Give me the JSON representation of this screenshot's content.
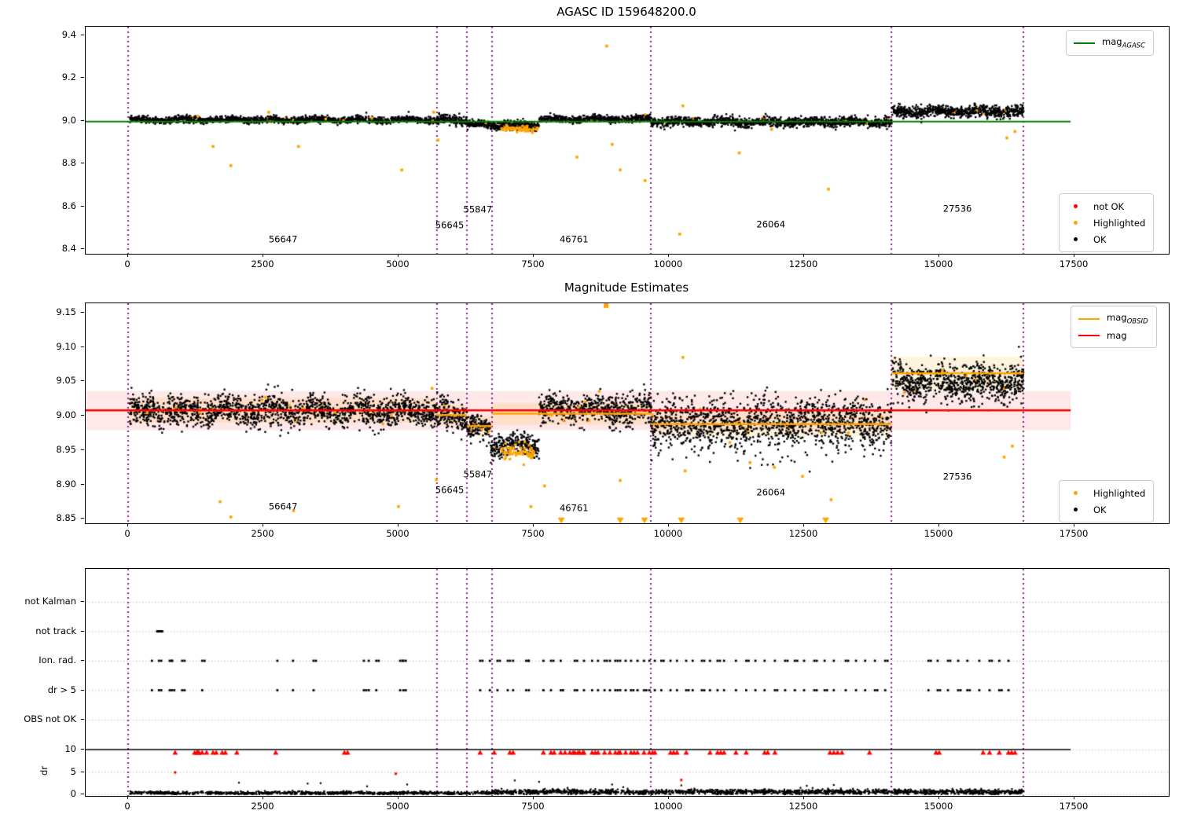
{
  "figure": {
    "bg": "#ffffff"
  },
  "panel1": {
    "title": "AGASC ID 159648200.0",
    "legend_line": {
      "main": "mag",
      "sub": "AGASC",
      "color": "#008000"
    },
    "legend_points": [
      {
        "label": "not OK",
        "color": "#ff0000"
      },
      {
        "label": "Highlighted",
        "color": "#ffa500"
      },
      {
        "label": "OK",
        "color": "#000000"
      }
    ]
  },
  "panel2": {
    "title": "Magnitude Estimates",
    "legend_lines": [
      {
        "main": "mag",
        "sub": "OBSID",
        "color": "#ffa500"
      },
      {
        "main": "mag",
        "sub": "",
        "color": "#ff0000"
      }
    ],
    "legend_points": [
      {
        "label": "Highlighted",
        "color": "#ffa500"
      },
      {
        "label": "OK",
        "color": "#000000"
      }
    ]
  },
  "panel3": {
    "ylabel": "dr"
  },
  "chart_data": [
    {
      "type": "scatter",
      "title": "AGASC ID 159648200.0",
      "xlim": [
        -785,
        19244
      ],
      "ylim": [
        8.3776,
        9.4404
      ],
      "xticks": [
        0,
        2500,
        5000,
        7500,
        10000,
        12500,
        15000,
        17500
      ],
      "yticks": [
        8.4,
        8.6,
        8.8,
        9.0,
        9.2,
        9.4
      ],
      "hline": {
        "y": 8.996,
        "color": "#008000",
        "x0": -785,
        "x1": 17430
      },
      "vlines": {
        "x": [
          0,
          5710,
          6265,
          6730,
          9665,
          14115,
          16555
        ],
        "color": "#800080"
      },
      "annotations": [
        {
          "text": "56647",
          "x": 2880,
          "y": 8.44
        },
        {
          "text": "56645",
          "x": 5960,
          "y": 8.505
        },
        {
          "text": "55847",
          "x": 6480,
          "y": 8.58
        },
        {
          "text": "46761",
          "x": 8260,
          "y": 8.44
        },
        {
          "text": "26064",
          "x": 11900,
          "y": 8.51
        },
        {
          "text": "27536",
          "x": 15350,
          "y": 8.585
        }
      ],
      "segments": [
        [
          30,
          5700,
          9.005,
          0.009,
          1500
        ],
        [
          5700,
          6270,
          9.005,
          0.012,
          170
        ],
        [
          6270,
          6700,
          8.982,
          0.01,
          130
        ],
        [
          6700,
          7600,
          8.978,
          0.012,
          260
        ],
        [
          7600,
          9670,
          9.008,
          0.009,
          550
        ],
        [
          9670,
          14120,
          8.995,
          0.013,
          1300
        ],
        [
          14120,
          16560,
          9.045,
          0.016,
          750
        ]
      ],
      "highlight_cloud": [
        6900,
        7600,
        8.962,
        0.006,
        55
      ],
      "highlight_frac": 0.012,
      "highlight_outliers": [
        [
          1570,
          8.88
        ],
        [
          1900,
          8.79
        ],
        [
          2600,
          9.04
        ],
        [
          3150,
          8.88
        ],
        [
          5060,
          8.77
        ],
        [
          5650,
          9.04
        ],
        [
          5730,
          8.91
        ],
        [
          8300,
          8.83
        ],
        [
          8850,
          9.35
        ],
        [
          8950,
          8.89
        ],
        [
          9100,
          8.77
        ],
        [
          9560,
          8.72
        ],
        [
          10200,
          8.47
        ],
        [
          10260,
          9.07
        ],
        [
          11300,
          8.85
        ],
        [
          11900,
          8.96
        ],
        [
          12950,
          8.68
        ],
        [
          16250,
          8.92
        ],
        [
          16400,
          8.95
        ]
      ]
    },
    {
      "type": "scatter",
      "title": "Magnitude Estimates",
      "xlim": [
        -785,
        19244
      ],
      "ylim": [
        8.8437,
        9.1637
      ],
      "xticks": [
        0,
        2500,
        5000,
        7500,
        10000,
        12500,
        15000,
        17500
      ],
      "yticks": [
        8.85,
        8.9,
        8.95,
        9.0,
        9.05,
        9.1,
        9.15
      ],
      "hline": {
        "y": 9.008,
        "color": "#ff0000",
        "x0": -785,
        "x1": 17430,
        "band": [
          8.979,
          9.036
        ],
        "band_color": "rgba(255,0,0,0.09)"
      },
      "obsid_segments": [
        {
          "x0": 30,
          "x1": 5700,
          "y": 9.008,
          "band": 0.018
        },
        {
          "x0": 5700,
          "x1": 6265,
          "y": 9.001,
          "band": 0.015
        },
        {
          "x0": 6265,
          "x1": 6730,
          "y": 8.985,
          "band": 0.015
        },
        {
          "x0": 6730,
          "x1": 9665,
          "y": 9.003,
          "band": 0.016
        },
        {
          "x0": 9665,
          "x1": 14115,
          "y": 8.988,
          "band": 0.018
        },
        {
          "x0": 14115,
          "x1": 16555,
          "y": 9.062,
          "band": 0.024
        }
      ],
      "obsid_color": "#ffa500",
      "obsid_band_color": "rgba(255,165,0,0.13)",
      "vlines": {
        "x": [
          0,
          5710,
          6265,
          6730,
          9665,
          14115,
          16555
        ],
        "color": "#800080"
      },
      "annotations": [
        {
          "text": "56647",
          "x": 2880,
          "y": 8.867
        },
        {
          "text": "56645",
          "x": 5960,
          "y": 8.89
        },
        {
          "text": "55847",
          "x": 6480,
          "y": 8.913
        },
        {
          "text": "46761",
          "x": 8260,
          "y": 8.864
        },
        {
          "text": "26064",
          "x": 11900,
          "y": 8.887
        },
        {
          "text": "27536",
          "x": 15350,
          "y": 8.91
        }
      ],
      "segments": [
        [
          30,
          5700,
          9.007,
          0.013,
          1600
        ],
        [
          5700,
          6270,
          9.0,
          0.013,
          180
        ],
        [
          6270,
          6700,
          8.98,
          0.01,
          140
        ],
        [
          6700,
          7600,
          8.958,
          0.01,
          280
        ],
        [
          7600,
          9670,
          9.01,
          0.013,
          600
        ],
        [
          9670,
          14120,
          8.99,
          0.02,
          1400
        ],
        [
          14120,
          16560,
          9.05,
          0.016,
          800
        ]
      ],
      "highlight_cloud": [
        6900,
        7500,
        8.947,
        0.006,
        60
      ],
      "highlight_frac": 0.012,
      "highlight_outliers": [
        [
          1700,
          8.875
        ],
        [
          1900,
          8.853
        ],
        [
          3060,
          8.862
        ],
        [
          5000,
          8.868
        ],
        [
          5620,
          9.04
        ],
        [
          5700,
          8.907
        ],
        [
          7450,
          8.868
        ],
        [
          7700,
          8.898
        ],
        [
          9100,
          8.906
        ],
        [
          10260,
          9.085
        ],
        [
          10300,
          8.92
        ],
        [
          11500,
          8.932
        ],
        [
          11950,
          8.925
        ],
        [
          12470,
          8.912
        ],
        [
          13000,
          8.878
        ],
        [
          16200,
          8.94
        ],
        [
          16350,
          8.956
        ]
      ],
      "clip_low_x": [
        8010,
        9100,
        9550,
        10230,
        11320,
        12900
      ],
      "clip_high_x": [
        8840
      ]
    },
    {
      "type": "categorical-scatter",
      "xlim": [
        -785,
        19244
      ],
      "xticks": [
        0,
        2500,
        5000,
        7500,
        10000,
        12500,
        15000,
        17500
      ],
      "rows": [
        "not Kalman",
        "not track",
        "Ion. rad.",
        "dr > 5",
        "OBS not OK"
      ],
      "dr_ticks": [
        10,
        5,
        0
      ],
      "ylabel": "dr",
      "hline": {
        "y": 10,
        "color": "#000000",
        "x0": -785,
        "x1": 17430
      },
      "vlines": {
        "x": [
          0,
          5710,
          6265,
          6730,
          9665,
          14115,
          16555
        ],
        "color": "#800080"
      },
      "not_track_x": [
        540,
        570,
        600,
        630
      ],
      "flag_x": [
        440,
        570,
        770,
        810,
        1000,
        1370,
        2760,
        3050,
        3430,
        4360,
        4450,
        4590,
        5030,
        5090,
        6510,
        6690,
        6830,
        7020,
        7120,
        7360,
        7410,
        7680,
        7820,
        8000,
        8260,
        8430,
        8580,
        8690,
        8810,
        8910,
        9010,
        9100,
        9200,
        9300,
        9420,
        9540,
        9640,
        9740,
        9860,
        10030,
        10150,
        10320,
        10440,
        10610,
        10760,
        10900,
        11020,
        11240,
        11430,
        11600,
        11770,
        11960,
        12150,
        12330,
        12500,
        12690,
        12880,
        13050,
        13270,
        13460,
        13630,
        13810,
        14000,
        14800,
        14970,
        15160,
        15350,
        15520,
        15740,
        15930,
        16110,
        16280
      ],
      "dr_clip_x": [
        870,
        1230,
        1270,
        1310,
        1450,
        1570,
        1740,
        2010,
        2730,
        4000,
        6510,
        6770,
        7060,
        7120,
        7680,
        7820,
        8000,
        8080,
        8170,
        8260,
        8350,
        8430,
        8580,
        8690,
        8810,
        8910,
        9010,
        9100,
        9200,
        9300,
        9420,
        9540,
        9640,
        9740,
        10030,
        10150,
        10320,
        10760,
        10900,
        11020,
        11240,
        11430,
        11770,
        11960,
        12980,
        13050,
        13120,
        13200,
        13710,
        14940,
        15810,
        15930,
        16110,
        16280,
        16400
      ],
      "dr_red_points": [
        [
          870,
          4.9
        ],
        [
          4950,
          4.6
        ],
        [
          10230,
          3.2
        ]
      ],
      "dr_spikes": [
        [
          2050,
          2.6
        ],
        [
          3320,
          2.4
        ],
        [
          3560,
          2.5
        ],
        [
          4420,
          1.8
        ],
        [
          5160,
          2.2
        ],
        [
          7150,
          3.1
        ],
        [
          7600,
          2.8
        ],
        [
          8950,
          2.2
        ],
        [
          10230,
          2.0
        ],
        [
          12550,
          1.9
        ],
        [
          13050,
          2.1
        ]
      ],
      "dr_segments": [
        [
          30,
          6730,
          0.3,
          0.17,
          900
        ],
        [
          6730,
          16560,
          0.55,
          0.28,
          1600
        ]
      ],
      "colors": {
        "flags": "#000000",
        "clip": "#ff0000",
        "dr": "#000000"
      }
    }
  ]
}
